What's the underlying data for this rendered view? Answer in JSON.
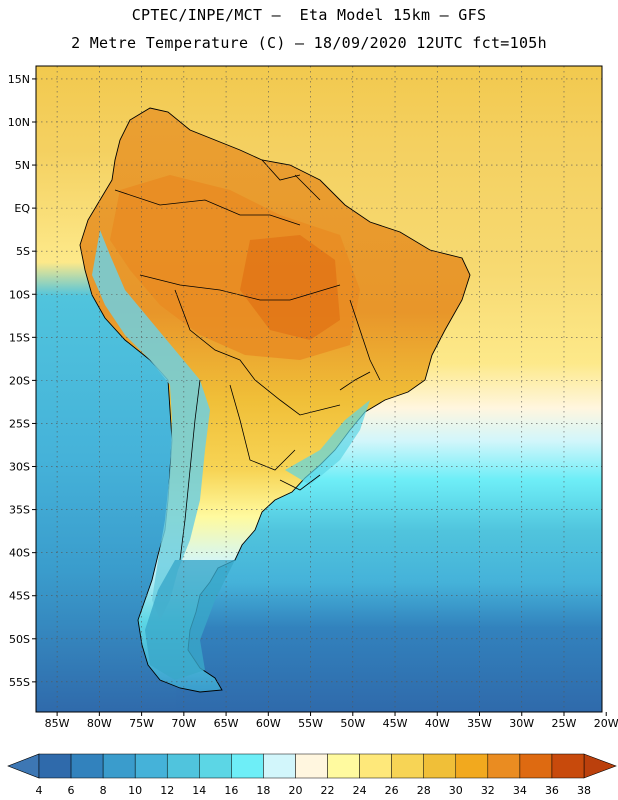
{
  "header": {
    "line1": "CPTEC/INPE/MCT –  Eta Model 15km – GFS",
    "line2": "2 Metre Temperature (C) – 18/09/2020 12UTC fct=105h"
  },
  "map": {
    "lat_labels": [
      "15N",
      "10N",
      "5N",
      "EQ",
      "5S",
      "10S",
      "15S",
      "20S",
      "25S",
      "30S",
      "35S",
      "40S",
      "45S",
      "50S",
      "55S"
    ],
    "lon_labels": [
      "85W",
      "80W",
      "75W",
      "70W",
      "65W",
      "60W",
      "55W",
      "50W",
      "45W",
      "40W",
      "35W",
      "30W",
      "25W",
      "20W"
    ],
    "lat_range": [
      -58.5,
      16.5
    ],
    "lon_range": [
      -87.5,
      -20.5
    ],
    "grid": true,
    "colors": {
      "ocean_north": "#f4d060",
      "ocean_tropical_south": "#fde98a",
      "ocean_mid": "#3fc4d8",
      "ocean_south": "#2f6aab",
      "land_hot": "#e89a2a",
      "land_warm": "#f2c03c",
      "land_andes_cool": "#7fd8e6",
      "land_patagonia": "#3aa8c9",
      "boundary": "#000000"
    }
  },
  "colorbar": {
    "labels": [
      "4",
      "6",
      "8",
      "10",
      "12",
      "14",
      "16",
      "18",
      "20",
      "22",
      "24",
      "26",
      "28",
      "30",
      "32",
      "34",
      "36",
      "38"
    ],
    "colors": [
      "#2f6aab",
      "#3282bd",
      "#3a9ccc",
      "#45b2d9",
      "#50c4dd",
      "#5cd6e5",
      "#6eeef7",
      "#d2f6fb",
      "#fff6df",
      "#fffa9f",
      "#fee87a",
      "#f7d455",
      "#f0bf38",
      "#f2a91e",
      "#ea8c21",
      "#de6a11",
      "#c84a0c"
    ],
    "end_left_color": "#3d77b4",
    "end_right_color": "#bb400c"
  }
}
